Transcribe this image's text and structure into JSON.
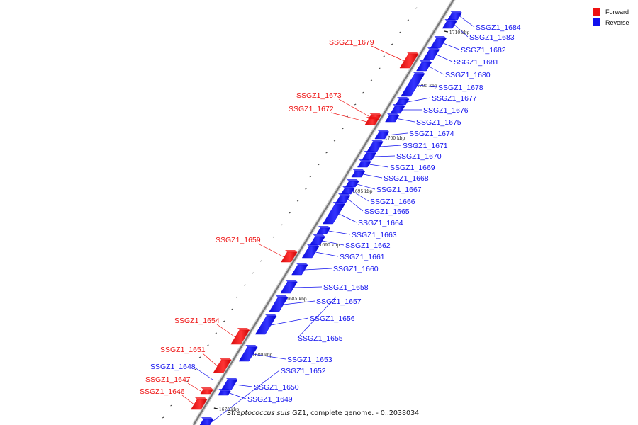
{
  "legend": {
    "items": [
      {
        "label": "Forward",
        "color": "#ee1111"
      },
      {
        "label": "Reverse",
        "color": "#1111ee"
      }
    ]
  },
  "caption": {
    "organism": "Streptococcus suis",
    "rest": " GZ1, complete genome. - 0..2038034"
  },
  "scale_ticks": [
    "1710 kbp",
    "1705 kbp",
    "1700 kbp",
    "1695 kbp",
    "1690 kbp",
    "1685 kbp",
    "1680 kbp",
    "1675 kbp"
  ],
  "genes_reverse": [
    "SSGZ1_1684",
    "SSGZ1_1683",
    "SSGZ1_1682",
    "SSGZ1_1681",
    "SSGZ1_1680",
    "SSGZ1_1678",
    "SSGZ1_1677",
    "SSGZ1_1676",
    "SSGZ1_1675",
    "SSGZ1_1674",
    "SSGZ1_1671",
    "SSGZ1_1670",
    "SSGZ1_1669",
    "SSGZ1_1668",
    "SSGZ1_1667",
    "SSGZ1_1666",
    "SSGZ1_1665",
    "SSGZ1_1664",
    "SSGZ1_1663",
    "SSGZ1_1662",
    "SSGZ1_1661",
    "SSGZ1_1660",
    "SSGZ1_1658",
    "SSGZ1_1657",
    "SSGZ1_1656",
    "SSGZ1_1655",
    "SSGZ1_1653",
    "SSGZ1_1652",
    "SSGZ1_1648",
    "SSGZ1_1650",
    "SSGZ1_1649"
  ],
  "genes_forward": [
    "SSGZ1_1679",
    "SSGZ1_1673",
    "SSGZ1_1672",
    "SSGZ1_1659",
    "SSGZ1_1654",
    "SSGZ1_1651",
    "SSGZ1_1647",
    "SSGZ1_1646"
  ],
  "colors": {
    "forward": "#ee1111",
    "reverse": "#1111ee",
    "axis": "#777777"
  }
}
